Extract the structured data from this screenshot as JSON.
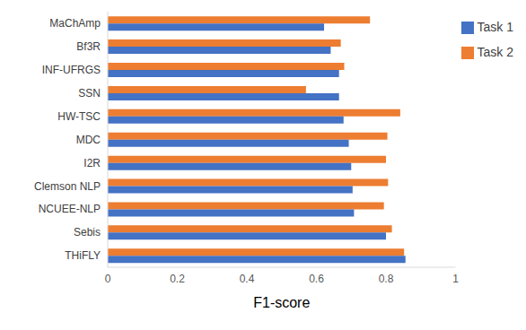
{
  "chart_data": {
    "type": "bar",
    "orientation": "horizontal",
    "x_label": "F1-score",
    "categories": [
      "MaChAmp",
      "Bf3R",
      "INF-UFRGS",
      "SSN",
      "HW-TSC",
      "MDC",
      "I2R",
      "Clemson NLP",
      "NCUEE-NLP",
      "Sebis",
      "THiFLY"
    ],
    "series": [
      {
        "name": "Task 2",
        "color": "#ed7d31",
        "values": [
          0.754,
          0.67,
          0.68,
          0.57,
          0.841,
          0.804,
          0.8,
          0.806,
          0.794,
          0.817,
          0.852
        ]
      },
      {
        "name": "Task 1",
        "color": "#4472c4",
        "values": [
          0.622,
          0.641,
          0.665,
          0.665,
          0.678,
          0.693,
          0.7,
          0.704,
          0.708,
          0.8,
          0.856
        ]
      }
    ],
    "xlim": [
      0,
      1
    ],
    "xticks": [
      0,
      0.2,
      0.4,
      0.6,
      0.8,
      1
    ],
    "grid": false,
    "legend": "upper right"
  }
}
